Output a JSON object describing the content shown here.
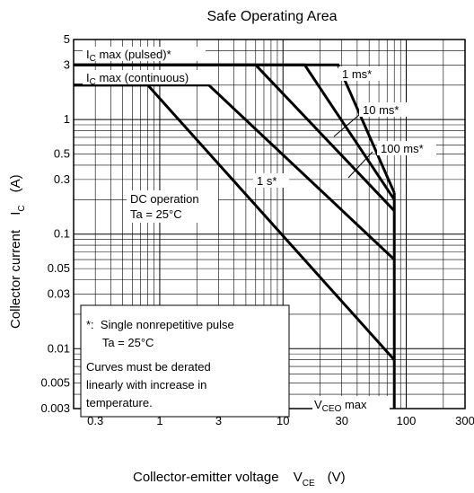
{
  "chart_data": {
    "type": "line",
    "title": "Safe Operating Area",
    "xlabel": {
      "main": "Collector-emitter voltage",
      "symbol": "V",
      "sub": "CE",
      "unit": "(V)"
    },
    "ylabel": {
      "main": "Collector current",
      "symbol": "I",
      "sub": "C",
      "unit": "(A)"
    },
    "x_scale": "log",
    "y_scale": "log",
    "xlim": [
      0.2,
      300
    ],
    "ylim": [
      0.003,
      5
    ],
    "grid": true,
    "x_ticks": [
      {
        "value": 0.3,
        "label": "0.3"
      },
      {
        "value": 1,
        "label": "1"
      },
      {
        "value": 3,
        "label": "3"
      },
      {
        "value": 10,
        "label": "10"
      },
      {
        "value": 30,
        "label": "30"
      },
      {
        "value": 100,
        "label": "100"
      },
      {
        "value": 300,
        "label": "300"
      }
    ],
    "y_ticks": [
      {
        "value": 5,
        "label": "5"
      },
      {
        "value": 3,
        "label": "3"
      },
      {
        "value": 1,
        "label": "1"
      },
      {
        "value": 0.5,
        "label": "0.5"
      },
      {
        "value": 0.3,
        "label": "0.3"
      },
      {
        "value": 0.1,
        "label": "0.1"
      },
      {
        "value": 0.05,
        "label": "0.05"
      },
      {
        "value": 0.03,
        "label": "0.03"
      },
      {
        "value": 0.01,
        "label": "0.01"
      },
      {
        "value": 0.005,
        "label": "0.005"
      },
      {
        "value": 0.003,
        "label": "0.003"
      }
    ],
    "series": [
      {
        "name": "1 ms*",
        "points": [
          [
            0.2,
            3.0
          ],
          [
            28,
            3.0
          ],
          [
            80,
            0.23
          ]
        ]
      },
      {
        "name": "10 ms*",
        "points": [
          [
            0.2,
            3.0
          ],
          [
            15,
            3.0
          ],
          [
            80,
            0.2
          ]
        ]
      },
      {
        "name": "100 ms*",
        "points": [
          [
            0.2,
            3.0
          ],
          [
            6,
            3.0
          ],
          [
            80,
            0.16
          ]
        ]
      },
      {
        "name": "1 s*",
        "points": [
          [
            0.2,
            2.0
          ],
          [
            2.5,
            2.0
          ],
          [
            80,
            0.06
          ]
        ]
      },
      {
        "name": "DC operation",
        "points": [
          [
            0.2,
            2.0
          ],
          [
            0.8,
            2.0
          ],
          [
            80,
            0.008
          ]
        ]
      }
    ],
    "annotations": {
      "ic_max_pulsed": {
        "main": "I",
        "sub": "C",
        "rest": " max (pulsed)*"
      },
      "ic_max_continuous": {
        "main": "I",
        "sub": "C",
        "rest": " max (continuous)"
      },
      "label_1ms": "1 ms*",
      "label_10ms": "10 ms*",
      "label_100ms": "100 ms*",
      "label_1s": "1 s*",
      "dc_operation": "DC operation",
      "dc_temperature": "Ta = 25°C",
      "note_lines": [
        "*:  Single nonrepetitive pulse",
        "     Ta = 25°C",
        "Curves must be derated",
        "linearly with increase in",
        "temperature."
      ],
      "vceo_max": {
        "main": "V",
        "sub": "CEO",
        "rest": " max"
      }
    },
    "vceo_max_value": 80
  }
}
